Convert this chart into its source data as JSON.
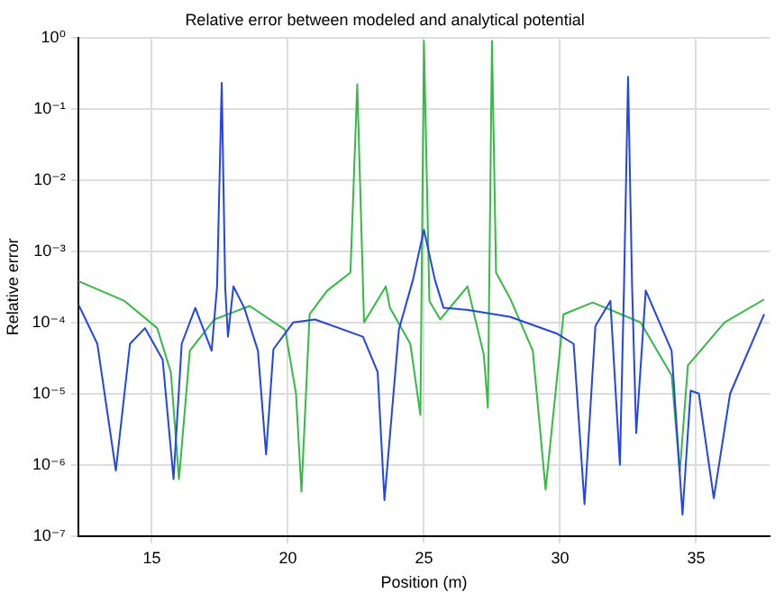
{
  "chart_data": {
    "type": "line",
    "title": "Relative error between modeled and analytical potential",
    "xlabel": "Position (m)",
    "ylabel": "Relative error",
    "log": "y",
    "grid": true,
    "legend": false,
    "marker": "none",
    "line_style": "solid",
    "xlim": [
      12.3,
      37.7
    ],
    "xticks": [
      15,
      20,
      25,
      30,
      35
    ],
    "ylim": [
      1e-07,
      1
    ],
    "yticks": [
      {
        "value": 1e-07,
        "label": "10⁻⁷"
      },
      {
        "value": 1e-06,
        "label": "10⁻⁶"
      },
      {
        "value": 1e-05,
        "label": "10⁻⁵"
      },
      {
        "value": 0.0001,
        "label": "10⁻⁴"
      },
      {
        "value": 0.001,
        "label": "10⁻³"
      },
      {
        "value": 0.01,
        "label": "10⁻²"
      },
      {
        "value": 0.1,
        "label": "10⁻¹"
      },
      {
        "value": 1,
        "label": "10⁰"
      }
    ],
    "series": [
      {
        "color": "#2244ee",
        "x": [
          12.3,
          13.0,
          13.68,
          14.2,
          14.75,
          15.4,
          15.8,
          16.1,
          16.6,
          17.2,
          17.4,
          17.57,
          17.7,
          17.8,
          18.0,
          18.4,
          18.9,
          19.2,
          19.47,
          20.2,
          21.0,
          22.76,
          23.3,
          23.55,
          24.08,
          24.6,
          25.0,
          25.4,
          25.72,
          26.58,
          28.16,
          29.87,
          30.5,
          30.9,
          31.3,
          31.85,
          32.2,
          32.35,
          32.5,
          32.65,
          32.8,
          33.15,
          34.1,
          34.5,
          34.8,
          35.1,
          35.65,
          36.25,
          37.5
        ],
        "values": [
          0.00018,
          5e-05,
          8.3e-07,
          5e-05,
          8.3e-05,
          3e-05,
          6.3e-07,
          5e-05,
          0.00016,
          4e-05,
          0.00032,
          0.23,
          0.0003,
          6.3e-05,
          0.00032,
          0.00016,
          4e-05,
          1.4e-06,
          4.2e-05,
          0.0001,
          0.00011,
          6.3e-05,
          2e-05,
          3.2e-07,
          7.9e-05,
          0.0004,
          0.002,
          0.0004,
          0.00016,
          0.00015,
          0.00012,
          7e-05,
          5e-05,
          2.8e-07,
          8.9e-05,
          0.0002,
          1e-06,
          0.0003,
          0.28,
          0.0003,
          2.8e-06,
          0.00028,
          4e-05,
          2e-07,
          1.1e-05,
          1e-05,
          3.4e-07,
          1e-05,
          0.00013
        ]
      },
      {
        "color": "#33bb44",
        "x": [
          12.3,
          14.0,
          15.2,
          15.7,
          16.0,
          16.4,
          17.3,
          18.6,
          19.9,
          20.3,
          20.5,
          20.8,
          21.45,
          22.3,
          22.55,
          22.8,
          23.6,
          23.75,
          24.5,
          24.87,
          25.0,
          25.2,
          25.6,
          26.6,
          27.2,
          27.35,
          27.5,
          27.65,
          28.16,
          29.0,
          29.47,
          30.13,
          31.2,
          32.96,
          34.1,
          34.4,
          34.7,
          36.05,
          37.5
        ],
        "values": [
          0.00038,
          0.0002,
          8.3e-05,
          2e-05,
          6.3e-07,
          4e-05,
          0.00011,
          0.00017,
          7.9e-05,
          1e-05,
          4.2e-07,
          0.00013,
          0.00028,
          0.0005,
          0.22,
          0.0001,
          0.00032,
          0.00016,
          5e-05,
          5e-06,
          0.9,
          0.0002,
          0.00011,
          0.00032,
          3.5e-05,
          6.3e-06,
          0.9,
          0.0005,
          0.00022,
          4e-05,
          4.5e-07,
          0.00013,
          0.00019,
          0.0001,
          1.8e-05,
          7.9e-07,
          2.5e-05,
          0.0001,
          0.00021
        ]
      }
    ]
  }
}
